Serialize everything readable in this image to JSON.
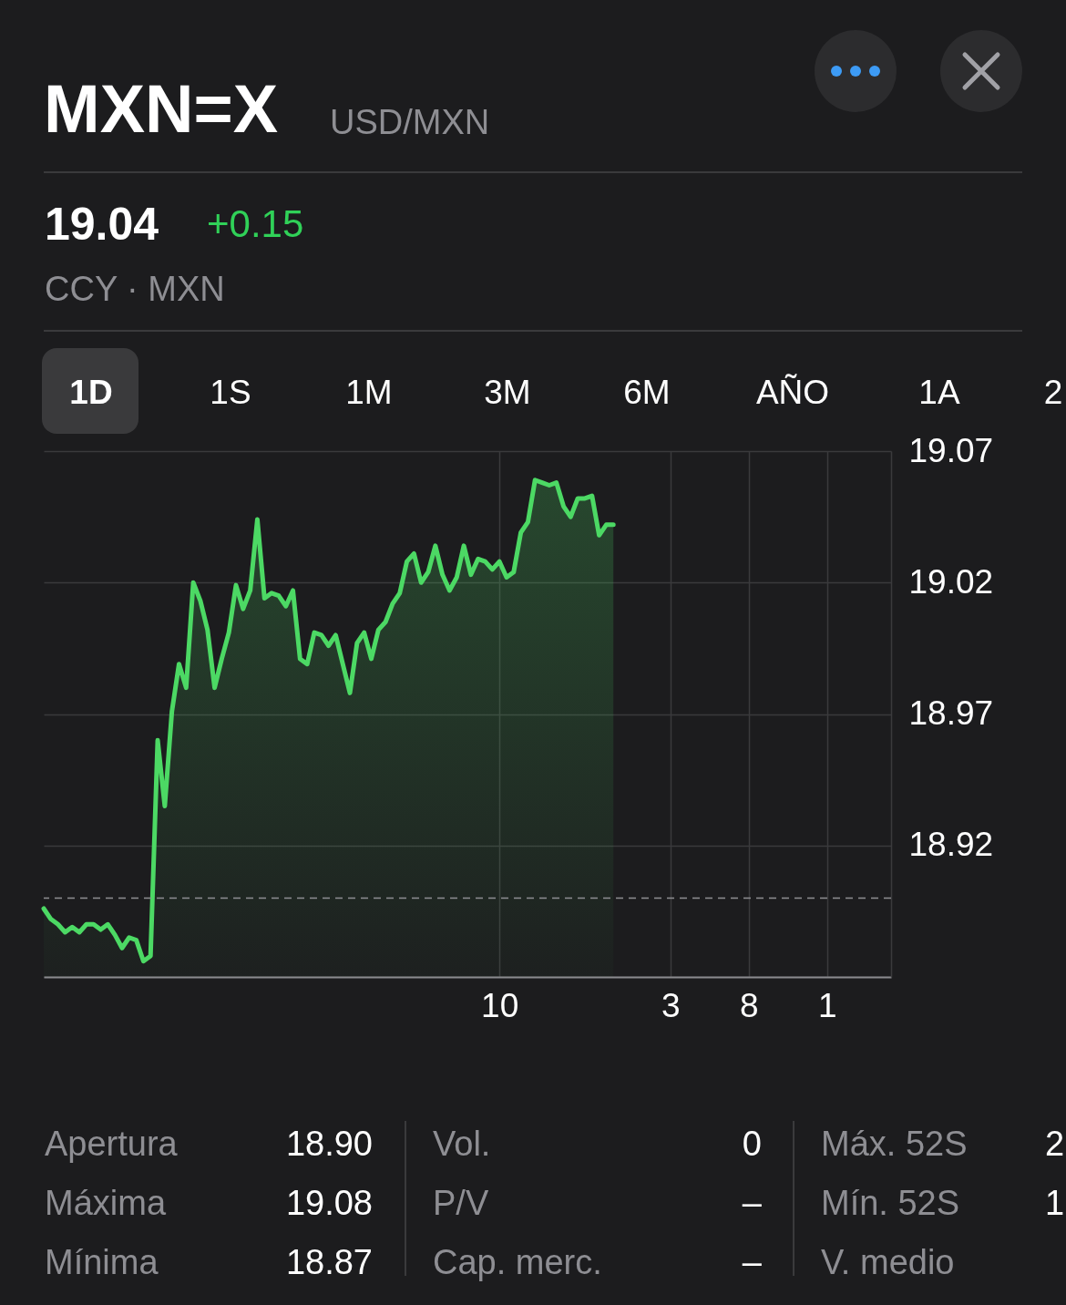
{
  "chart_data": {
    "type": "area",
    "title": "MXN=X",
    "subtitle": "USD/MXN",
    "annotations": [
      "19.04",
      "+0.15",
      "CCY · MXN",
      "1D",
      "1S",
      "1M",
      "3M",
      "6M",
      "AÑO",
      "1A",
      "2",
      "Apertura",
      "18.90",
      "Máxima",
      "19.08",
      "Mínima",
      "18.87",
      "Vol.",
      "0",
      "P/V",
      "–",
      "Cap. merc.",
      "–",
      "Máx. 52S",
      "2",
      "Mín. 52S",
      "1",
      "V. medio"
    ],
    "categories": [
      null,
      null,
      null,
      null,
      null,
      null,
      null,
      null,
      null,
      null,
      null,
      null,
      null,
      null,
      null,
      null,
      null,
      null,
      null,
      null,
      null,
      null,
      null,
      null,
      null,
      null,
      null,
      null,
      null,
      null,
      null,
      null,
      null,
      null,
      null,
      null,
      null,
      null,
      null,
      null,
      null,
      null,
      null,
      null,
      null,
      null,
      null,
      null,
      null,
      null,
      null,
      null,
      null,
      null,
      null,
      null,
      null,
      null,
      null,
      null,
      null,
      null,
      null,
      null,
      "10",
      null,
      null,
      null,
      null,
      null,
      null,
      null,
      null,
      null,
      null,
      null,
      null,
      null,
      null,
      null,
      null,
      null,
      null,
      null,
      null,
      null,
      null,
      null,
      "3",
      null,
      null,
      null,
      null,
      null,
      null,
      null,
      null,
      null,
      null,
      "8",
      null,
      null,
      null,
      null,
      null,
      null,
      null,
      null,
      null,
      null,
      "1",
      null,
      null,
      null,
      null,
      null,
      null,
      null,
      null,
      null
    ],
    "values": [
      18.896,
      18.892,
      18.89,
      18.887,
      18.889,
      18.887,
      18.89,
      18.89,
      18.888,
      18.89,
      18.886,
      18.881,
      18.885,
      18.884,
      18.876,
      18.878,
      18.96,
      18.935,
      18.971,
      18.989,
      18.98,
      19.02,
      19.013,
      19.002,
      18.98,
      18.991,
      19.001,
      19.019,
      19.01,
      19.017,
      19.044,
      19.014,
      19.016,
      19.015,
      19.011,
      19.017,
      18.991,
      18.989,
      19.001,
      19.0,
      18.996,
      19.0,
      18.989,
      18.978,
      18.997,
      19.001,
      18.991,
      19.002,
      19.005,
      19.012,
      19.016,
      19.028,
      19.031,
      19.02,
      19.024,
      19.034,
      19.023,
      19.017,
      19.022,
      19.034,
      19.023,
      19.029,
      19.028,
      19.025,
      19.028,
      19.022,
      19.024,
      19.039,
      19.043,
      19.059,
      19.058,
      19.057,
      19.058,
      19.049,
      19.045,
      19.052,
      19.052,
      19.053,
      19.038,
      19.042,
      19.042,
      null,
      null,
      null,
      null,
      null,
      null,
      null,
      null,
      null,
      null,
      null,
      null,
      null,
      null,
      null,
      null,
      null,
      null,
      null,
      null,
      null,
      null,
      null,
      null,
      null,
      null,
      null,
      null,
      null,
      null,
      null,
      null,
      null,
      null,
      null,
      null,
      null,
      null,
      null
    ],
    "color": "#4cd964",
    "ylim": [
      18.87,
      19.07
    ],
    "yticks": [
      {
        "value": 18.87,
        "label": null
      },
      18.92,
      18.97,
      19.02,
      19.07
    ],
    "grid": true,
    "ref_lines": [
      {
        "axis": "y",
        "value": 18.9,
        "color": "#8e8e93",
        "line_style": "dashed"
      }
    ]
  }
}
